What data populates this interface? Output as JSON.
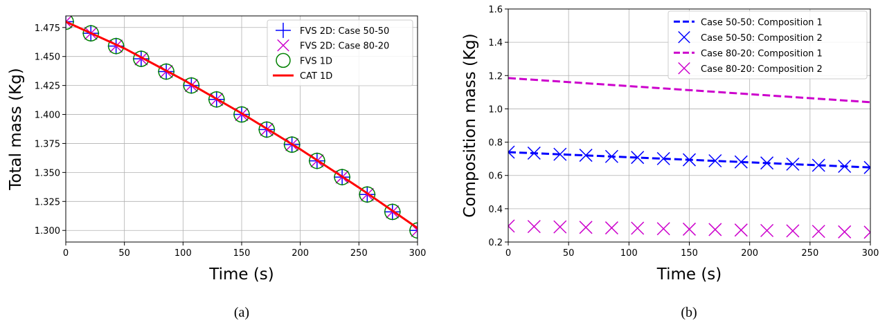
{
  "chart_data": [
    {
      "type": "line",
      "panel_caption": "(a)",
      "xlabel": "Time (s)",
      "ylabel": "Total mass (Kg)",
      "xlim": [
        0,
        300
      ],
      "ylim": [
        1.29,
        1.485
      ],
      "xticks": [
        0,
        50,
        100,
        150,
        200,
        250,
        300
      ],
      "yticks": [
        1.3,
        1.325,
        1.35,
        1.375,
        1.4,
        1.425,
        1.45,
        1.475
      ],
      "xtick_labels": [
        "0",
        "50",
        "100",
        "150",
        "200",
        "250",
        "300"
      ],
      "ytick_labels": [
        "1.300",
        "1.325",
        "1.350",
        "1.375",
        "1.400",
        "1.425",
        "1.450",
        "1.475"
      ],
      "grid": true,
      "legend_position": "top-right",
      "series": [
        {
          "name": "FVS 2D: Case 50-50",
          "marker": "plus",
          "color": "#0000ff",
          "x": [
            0,
            21.4,
            42.9,
            64.3,
            85.7,
            107.1,
            128.6,
            150,
            171.4,
            192.9,
            214.3,
            235.7,
            257.1,
            278.6,
            300
          ],
          "y": [
            1.48,
            1.47,
            1.459,
            1.448,
            1.437,
            1.425,
            1.413,
            1.4,
            1.387,
            1.374,
            1.36,
            1.346,
            1.331,
            1.316,
            1.3
          ]
        },
        {
          "name": "FVS 2D: Case 80-20",
          "marker": "x",
          "color": "#cc00cc",
          "x": [
            0,
            21.4,
            42.9,
            64.3,
            85.7,
            107.1,
            128.6,
            150,
            171.4,
            192.9,
            214.3,
            235.7,
            257.1,
            278.6,
            300
          ],
          "y": [
            1.48,
            1.47,
            1.459,
            1.448,
            1.437,
            1.425,
            1.413,
            1.4,
            1.387,
            1.374,
            1.36,
            1.346,
            1.331,
            1.316,
            1.3
          ]
        },
        {
          "name": "FVS 1D",
          "marker": "circle",
          "color": "#008000",
          "x": [
            0,
            21.4,
            42.9,
            64.3,
            85.7,
            107.1,
            128.6,
            150,
            171.4,
            192.9,
            214.3,
            235.7,
            257.1,
            278.6,
            300
          ],
          "y": [
            1.48,
            1.47,
            1.459,
            1.448,
            1.437,
            1.425,
            1.413,
            1.4,
            1.387,
            1.374,
            1.36,
            1.346,
            1.331,
            1.316,
            1.3
          ]
        },
        {
          "name": "CAT 1D",
          "line": "solid",
          "color": "#ff0000",
          "x": [
            0,
            50,
            100,
            150,
            200,
            250,
            300
          ],
          "y": [
            1.48,
            1.457,
            1.43,
            1.401,
            1.37,
            1.337,
            1.302
          ]
        }
      ]
    },
    {
      "type": "line",
      "panel_caption": "(b)",
      "xlabel": "Time (s)",
      "ylabel": "Composition mass (Kg)",
      "xlim": [
        0,
        300
      ],
      "ylim": [
        0.2,
        1.6
      ],
      "xticks": [
        0,
        50,
        100,
        150,
        200,
        250,
        300
      ],
      "yticks": [
        0.2,
        0.4,
        0.6,
        0.8,
        1.0,
        1.2,
        1.4,
        1.6
      ],
      "xtick_labels": [
        "0",
        "50",
        "100",
        "150",
        "200",
        "250",
        "300"
      ],
      "ytick_labels": [
        "0.2",
        "0.4",
        "0.6",
        "0.8",
        "1.0",
        "1.2",
        "1.4",
        "1.6"
      ],
      "grid": true,
      "legend_position": "top-right",
      "series": [
        {
          "name": "Case 50-50: Composition 1",
          "line": "dashed",
          "color": "#0000ff",
          "x": [
            0,
            300
          ],
          "y": [
            0.74,
            0.648
          ]
        },
        {
          "name": "Case 50-50: Composition 2",
          "marker": "x",
          "color": "#0000ff",
          "x": [
            0,
            21.4,
            42.9,
            64.3,
            85.7,
            107.1,
            128.6,
            150,
            171.4,
            192.9,
            214.3,
            235.7,
            257.1,
            278.6,
            300
          ],
          "y": [
            0.74,
            0.734,
            0.727,
            0.721,
            0.714,
            0.708,
            0.701,
            0.694,
            0.688,
            0.681,
            0.675,
            0.668,
            0.661,
            0.655,
            0.648
          ]
        },
        {
          "name": "Case 80-20: Composition 1",
          "line": "dashed",
          "color": "#cc00cc",
          "x": [
            0,
            300
          ],
          "y": [
            1.185,
            1.04
          ]
        },
        {
          "name": "Case 80-20: Composition 2",
          "marker": "x",
          "color": "#cc00cc",
          "x": [
            0,
            21.4,
            42.9,
            64.3,
            85.7,
            107.1,
            128.6,
            150,
            171.4,
            192.9,
            214.3,
            235.7,
            257.1,
            278.6,
            300
          ],
          "y": [
            0.296,
            0.293,
            0.291,
            0.288,
            0.285,
            0.283,
            0.28,
            0.277,
            0.275,
            0.272,
            0.269,
            0.267,
            0.264,
            0.261,
            0.259
          ]
        }
      ]
    }
  ]
}
